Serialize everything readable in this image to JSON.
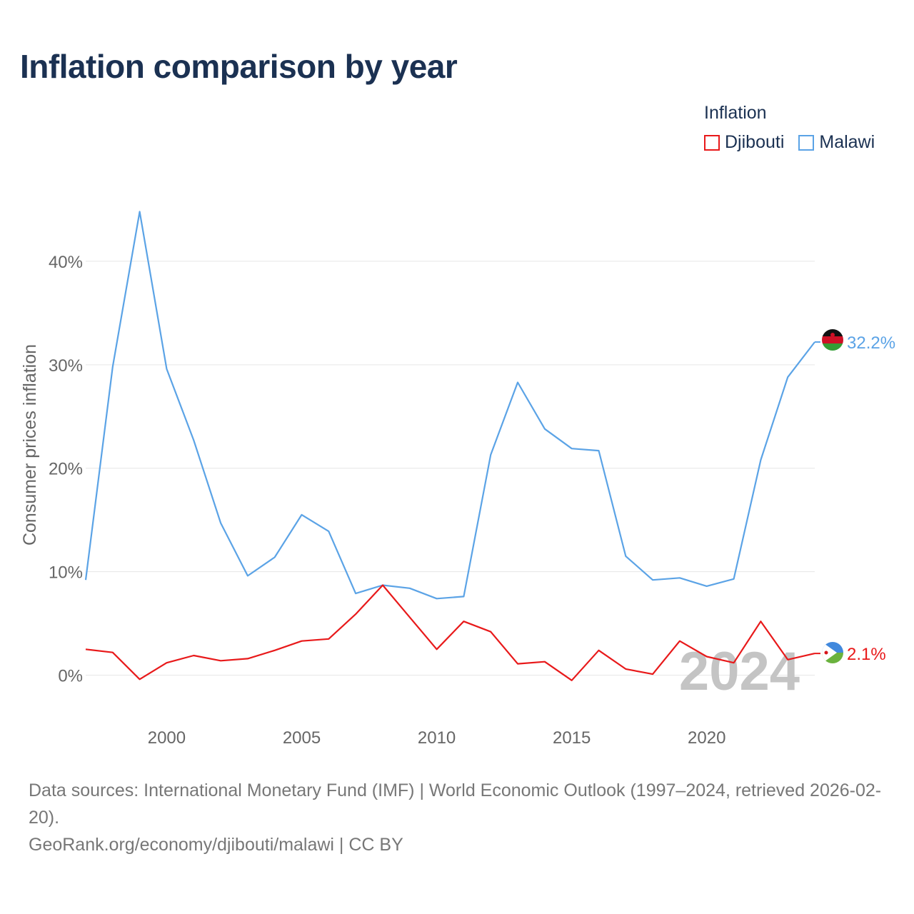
{
  "title": "Inflation comparison by year",
  "legend": {
    "title": "Inflation",
    "items": [
      {
        "name": "Djibouti",
        "color": "#e8191a"
      },
      {
        "name": "Malawi",
        "color": "#5ba3e6"
      }
    ]
  },
  "chart_data": {
    "type": "line",
    "title": "Inflation comparison by year",
    "xlabel": "",
    "ylabel": "Consumer prices inflation",
    "x": [
      1997,
      1998,
      1999,
      2000,
      2001,
      2002,
      2003,
      2004,
      2005,
      2006,
      2007,
      2008,
      2009,
      2010,
      2011,
      2012,
      2013,
      2014,
      2015,
      2016,
      2017,
      2018,
      2019,
      2020,
      2021,
      2022,
      2023,
      2024
    ],
    "xlim": [
      1997,
      2024
    ],
    "ylim": [
      -5,
      48
    ],
    "x_ticks": [
      2000,
      2005,
      2010,
      2015,
      2020
    ],
    "x_tick_labels": [
      "2000",
      "2005",
      "2010",
      "2015",
      "2020"
    ],
    "y_ticks": [
      0,
      10,
      20,
      30,
      40
    ],
    "y_tick_labels": [
      "0%",
      "10%",
      "20%",
      "30%",
      "40%"
    ],
    "grid": true,
    "legend_position": "top-right",
    "year_watermark": "2024",
    "series": [
      {
        "name": "Djibouti",
        "color": "#e8191a",
        "end_label": "2.1%",
        "values": [
          2.5,
          2.2,
          -0.4,
          1.2,
          1.9,
          1.4,
          1.6,
          2.4,
          3.3,
          3.5,
          5.9,
          8.7,
          5.6,
          2.5,
          5.2,
          4.2,
          1.1,
          1.3,
          -0.5,
          2.4,
          0.6,
          0.1,
          3.3,
          1.8,
          1.2,
          5.2,
          1.5,
          2.1
        ]
      },
      {
        "name": "Malawi",
        "color": "#5ba3e6",
        "end_label": "32.2%",
        "values": [
          9.2,
          29.8,
          44.8,
          29.6,
          22.7,
          14.7,
          9.6,
          11.4,
          15.5,
          13.9,
          7.9,
          8.7,
          8.4,
          7.4,
          7.6,
          21.3,
          28.3,
          23.8,
          21.9,
          21.7,
          11.5,
          9.2,
          9.4,
          8.6,
          9.3,
          20.8,
          28.8,
          32.2
        ]
      }
    ]
  },
  "footer": {
    "line1": "Data sources: International Monetary Fund (IMF) | World Economic Outlook (1997–2024, retrieved 2026-02-20).",
    "line2": "GeoRank.org/economy/djibouti/malawi | CC BY"
  }
}
